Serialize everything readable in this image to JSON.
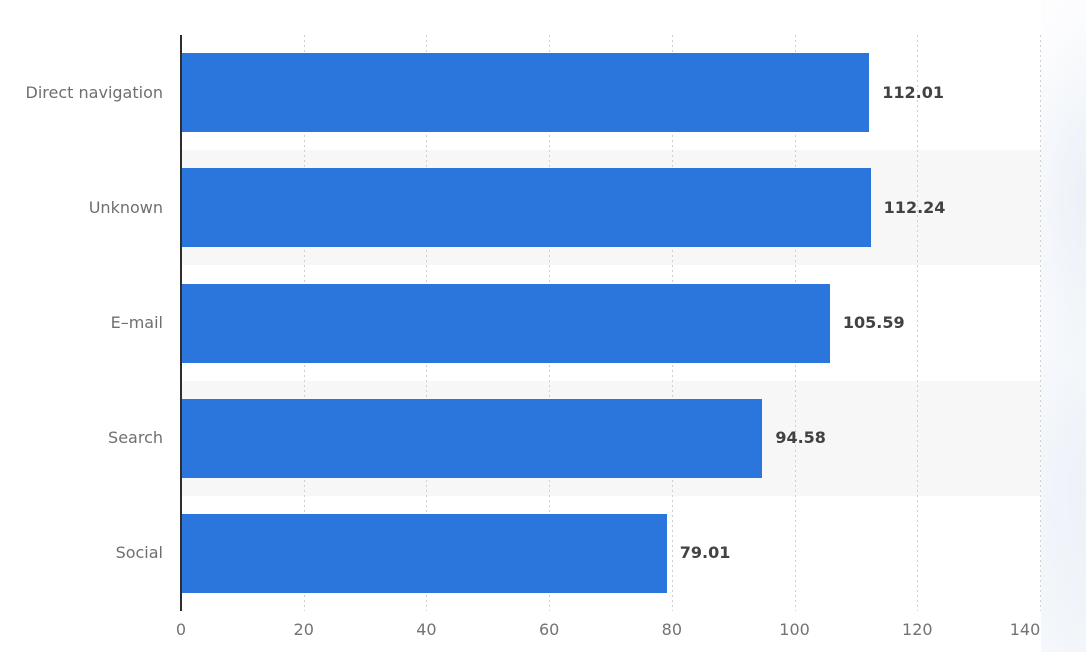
{
  "chart_data": {
    "type": "bar",
    "orientation": "horizontal",
    "title": "",
    "xlabel": "",
    "ylabel": "",
    "categories": [
      "Direct navigation",
      "Unknown",
      "E–mail",
      "Search",
      "Social"
    ],
    "values": [
      112.01,
      112.24,
      105.59,
      94.58,
      79.01
    ],
    "value_labels": [
      "112.01",
      "112.24",
      "105.59",
      "94.58",
      "79.01"
    ],
    "xlim": [
      0,
      140
    ],
    "x_ticks": [
      0,
      20,
      40,
      60,
      80,
      100,
      120,
      140
    ],
    "x_tick_labels": [
      "0",
      "20",
      "40",
      "60",
      "80",
      "100",
      "120",
      "140"
    ],
    "grid": "dotted-vertical-gridlines",
    "row_striping": "alternate",
    "legend": "none",
    "colors": {
      "bar": "#2a76dd",
      "row_stripe": "#f7f7f8",
      "gridline": "#cfcfcf",
      "axis_line": "#2d2d2d",
      "category_label": "#6f6f6f",
      "value_label": "#424242",
      "tick_label": "#737373",
      "background": "#ffffff"
    }
  }
}
